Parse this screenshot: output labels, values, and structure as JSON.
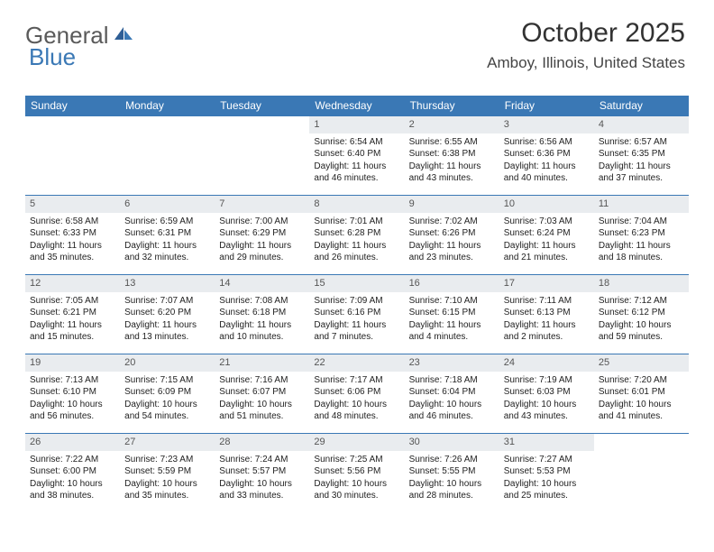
{
  "logo": {
    "part1": "General",
    "part2": "Blue"
  },
  "header": {
    "month_title": "October 2025",
    "location": "Amboy, Illinois, United States"
  },
  "colors": {
    "header_bg": "#3a78b5",
    "header_text": "#ffffff",
    "daynum_bg": "#e9ecef",
    "body_text": "#222222",
    "logo_gray": "#5a5a5a",
    "logo_blue": "#3a78b5"
  },
  "layout": {
    "columns": 7,
    "rows": 5,
    "first_day_col": 3
  },
  "day_names": [
    "Sunday",
    "Monday",
    "Tuesday",
    "Wednesday",
    "Thursday",
    "Friday",
    "Saturday"
  ],
  "days": [
    {
      "n": 1,
      "sunrise": "6:54 AM",
      "sunset": "6:40 PM",
      "day_h": 11,
      "day_m": 46
    },
    {
      "n": 2,
      "sunrise": "6:55 AM",
      "sunset": "6:38 PM",
      "day_h": 11,
      "day_m": 43
    },
    {
      "n": 3,
      "sunrise": "6:56 AM",
      "sunset": "6:36 PM",
      "day_h": 11,
      "day_m": 40
    },
    {
      "n": 4,
      "sunrise": "6:57 AM",
      "sunset": "6:35 PM",
      "day_h": 11,
      "day_m": 37
    },
    {
      "n": 5,
      "sunrise": "6:58 AM",
      "sunset": "6:33 PM",
      "day_h": 11,
      "day_m": 35
    },
    {
      "n": 6,
      "sunrise": "6:59 AM",
      "sunset": "6:31 PM",
      "day_h": 11,
      "day_m": 32
    },
    {
      "n": 7,
      "sunrise": "7:00 AM",
      "sunset": "6:29 PM",
      "day_h": 11,
      "day_m": 29
    },
    {
      "n": 8,
      "sunrise": "7:01 AM",
      "sunset": "6:28 PM",
      "day_h": 11,
      "day_m": 26
    },
    {
      "n": 9,
      "sunrise": "7:02 AM",
      "sunset": "6:26 PM",
      "day_h": 11,
      "day_m": 23
    },
    {
      "n": 10,
      "sunrise": "7:03 AM",
      "sunset": "6:24 PM",
      "day_h": 11,
      "day_m": 21
    },
    {
      "n": 11,
      "sunrise": "7:04 AM",
      "sunset": "6:23 PM",
      "day_h": 11,
      "day_m": 18
    },
    {
      "n": 12,
      "sunrise": "7:05 AM",
      "sunset": "6:21 PM",
      "day_h": 11,
      "day_m": 15
    },
    {
      "n": 13,
      "sunrise": "7:07 AM",
      "sunset": "6:20 PM",
      "day_h": 11,
      "day_m": 13
    },
    {
      "n": 14,
      "sunrise": "7:08 AM",
      "sunset": "6:18 PM",
      "day_h": 11,
      "day_m": 10
    },
    {
      "n": 15,
      "sunrise": "7:09 AM",
      "sunset": "6:16 PM",
      "day_h": 11,
      "day_m": 7
    },
    {
      "n": 16,
      "sunrise": "7:10 AM",
      "sunset": "6:15 PM",
      "day_h": 11,
      "day_m": 4
    },
    {
      "n": 17,
      "sunrise": "7:11 AM",
      "sunset": "6:13 PM",
      "day_h": 11,
      "day_m": 2
    },
    {
      "n": 18,
      "sunrise": "7:12 AM",
      "sunset": "6:12 PM",
      "day_h": 10,
      "day_m": 59
    },
    {
      "n": 19,
      "sunrise": "7:13 AM",
      "sunset": "6:10 PM",
      "day_h": 10,
      "day_m": 56
    },
    {
      "n": 20,
      "sunrise": "7:15 AM",
      "sunset": "6:09 PM",
      "day_h": 10,
      "day_m": 54
    },
    {
      "n": 21,
      "sunrise": "7:16 AM",
      "sunset": "6:07 PM",
      "day_h": 10,
      "day_m": 51
    },
    {
      "n": 22,
      "sunrise": "7:17 AM",
      "sunset": "6:06 PM",
      "day_h": 10,
      "day_m": 48
    },
    {
      "n": 23,
      "sunrise": "7:18 AM",
      "sunset": "6:04 PM",
      "day_h": 10,
      "day_m": 46
    },
    {
      "n": 24,
      "sunrise": "7:19 AM",
      "sunset": "6:03 PM",
      "day_h": 10,
      "day_m": 43
    },
    {
      "n": 25,
      "sunrise": "7:20 AM",
      "sunset": "6:01 PM",
      "day_h": 10,
      "day_m": 41
    },
    {
      "n": 26,
      "sunrise": "7:22 AM",
      "sunset": "6:00 PM",
      "day_h": 10,
      "day_m": 38
    },
    {
      "n": 27,
      "sunrise": "7:23 AM",
      "sunset": "5:59 PM",
      "day_h": 10,
      "day_m": 35
    },
    {
      "n": 28,
      "sunrise": "7:24 AM",
      "sunset": "5:57 PM",
      "day_h": 10,
      "day_m": 33
    },
    {
      "n": 29,
      "sunrise": "7:25 AM",
      "sunset": "5:56 PM",
      "day_h": 10,
      "day_m": 30
    },
    {
      "n": 30,
      "sunrise": "7:26 AM",
      "sunset": "5:55 PM",
      "day_h": 10,
      "day_m": 28
    },
    {
      "n": 31,
      "sunrise": "7:27 AM",
      "sunset": "5:53 PM",
      "day_h": 10,
      "day_m": 25
    }
  ],
  "labels": {
    "sunrise_prefix": "Sunrise: ",
    "sunset_prefix": "Sunset: ",
    "daylight_prefix": "Daylight: ",
    "hours_word": " hours",
    "and_word": "and ",
    "minutes_word": " minutes."
  }
}
